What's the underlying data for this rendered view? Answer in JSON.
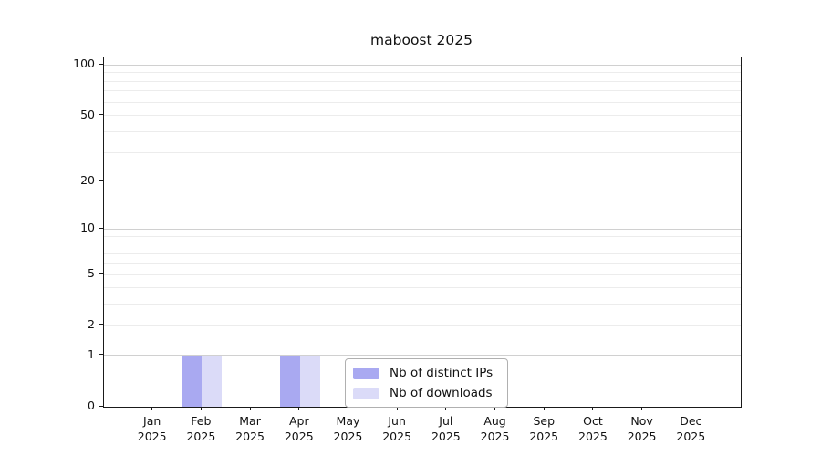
{
  "title": "maboost 2025",
  "chart_data": {
    "type": "bar",
    "title": "maboost 2025",
    "x_categories": [
      "Jan 2025",
      "Feb 2025",
      "Mar 2025",
      "Apr 2025",
      "May 2025",
      "Jun 2025",
      "Jul 2025",
      "Aug 2025",
      "Sep 2025",
      "Oct 2025",
      "Nov 2025",
      "Dec 2025"
    ],
    "series": [
      {
        "name": "Nb of distinct IPs",
        "color": "#a9a9f1",
        "values": [
          0,
          1,
          0,
          1,
          0,
          0,
          0,
          0,
          0,
          0,
          0,
          0
        ]
      },
      {
        "name": "Nb of downloads",
        "color": "#dbdbf8",
        "values": [
          0,
          1,
          0,
          1,
          0,
          0,
          0,
          0,
          0,
          0,
          0,
          0
        ]
      }
    ],
    "yscale": "log1p",
    "yticks": [
      0,
      1,
      2,
      5,
      10,
      20,
      50,
      100
    ],
    "ytick_labels": [
      "0",
      "1",
      "2",
      "5",
      "10",
      "20",
      "50",
      "100"
    ],
    "ylim": [
      0,
      111
    ],
    "grid_major": [
      1,
      10,
      100
    ],
    "grid_minor": [
      2,
      3,
      4,
      5,
      6,
      7,
      8,
      9,
      20,
      30,
      40,
      50,
      60,
      70,
      80,
      90
    ],
    "xlabel": "",
    "ylabel": "",
    "legend_position": "lower center inside",
    "grid": "horizontal"
  },
  "legend": {
    "items": [
      {
        "label": "Nb of distinct IPs",
        "color": "#a9a9f1"
      },
      {
        "label": "Nb of downloads",
        "color": "#dbdbf8"
      }
    ]
  },
  "colors": {
    "background": "#ffffff",
    "spine": "#1a1a1a",
    "grid_major": "#d0d0d0",
    "grid_minor": "#ececec",
    "text": "#111111",
    "legend_border": "#b0b0b0"
  }
}
